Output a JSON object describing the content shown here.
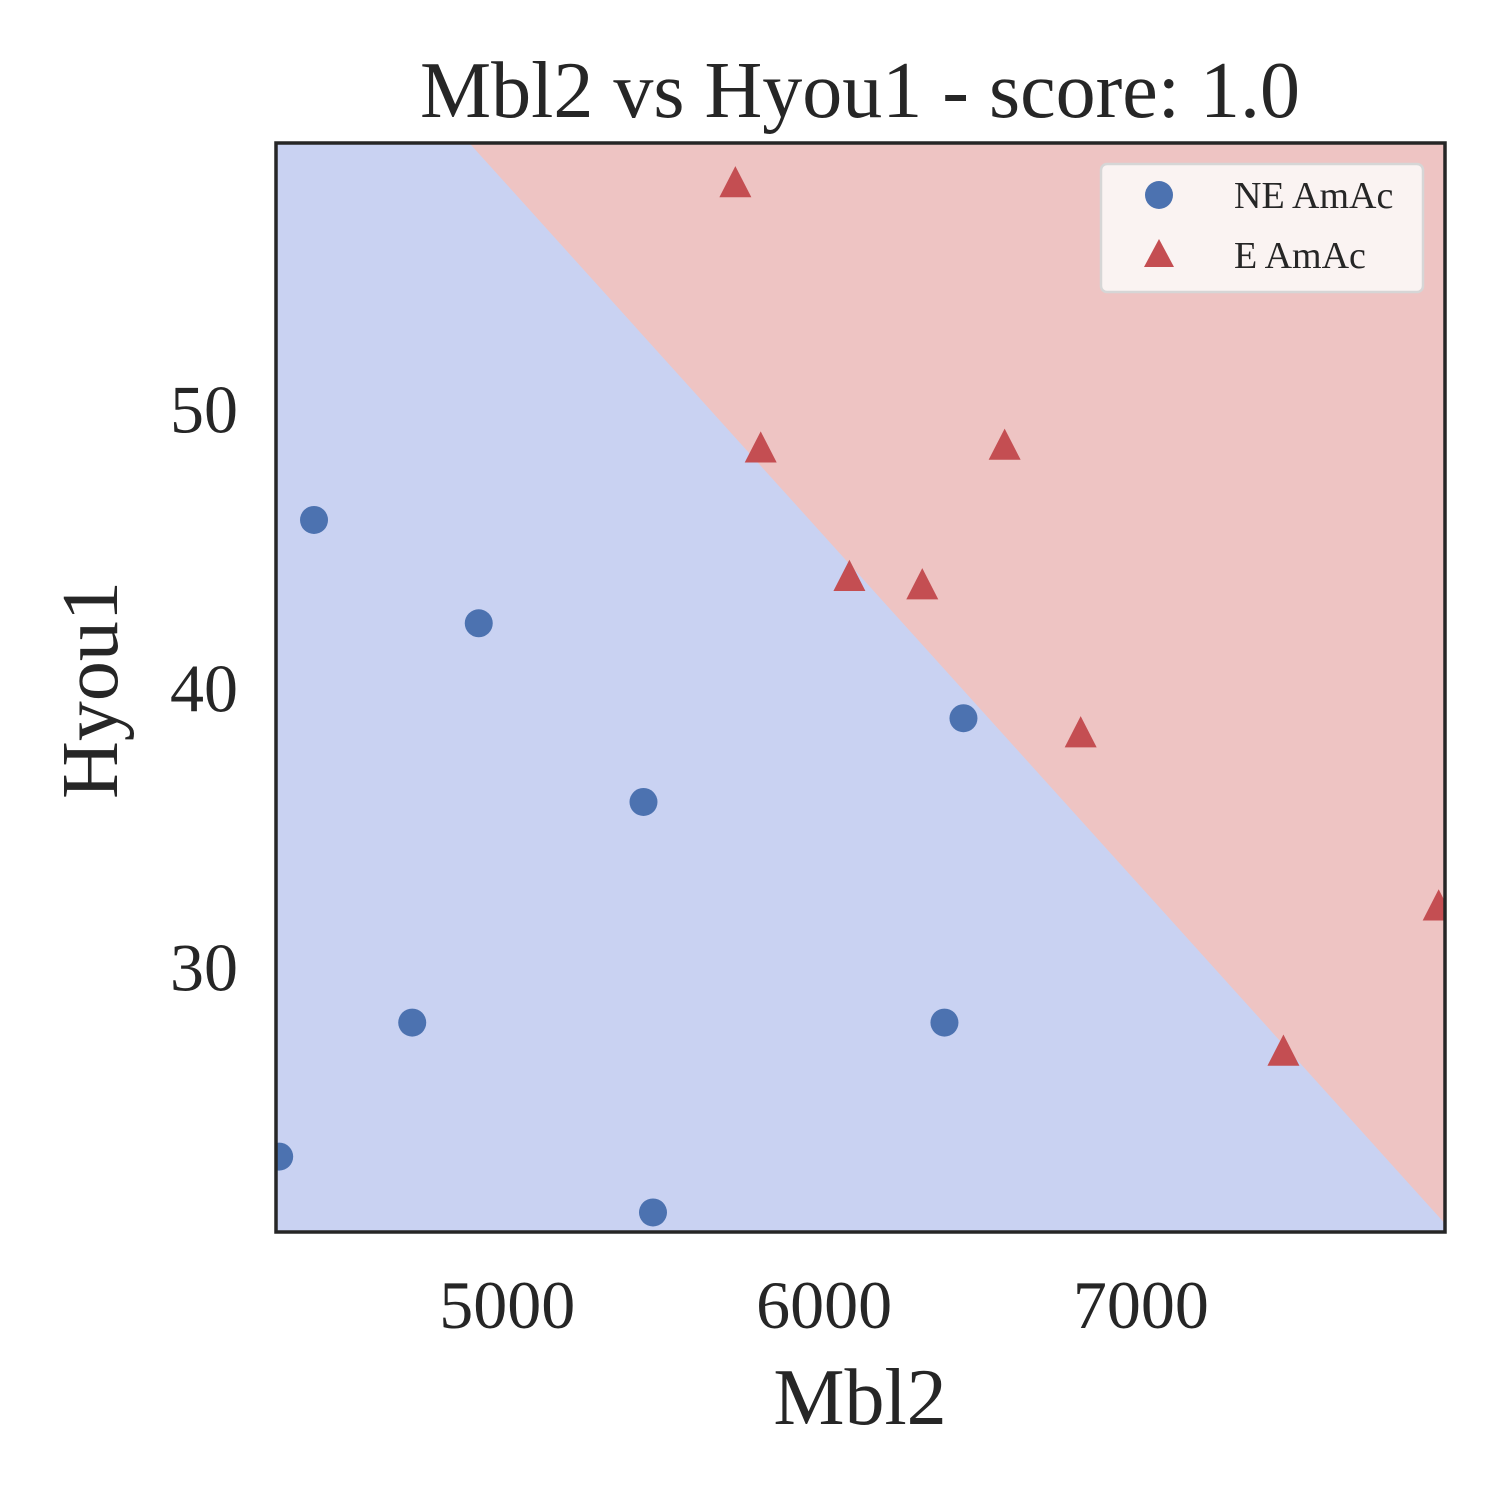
{
  "chart_data": {
    "type": "scatter",
    "title": "Mbl2 vs Hyou1 - score: 1.0",
    "xlabel": "Mbl2",
    "ylabel": "Hyou1",
    "xlim": [
      4270,
      7960
    ],
    "ylim": [
      20.5,
      59.5
    ],
    "xticks": [
      5000,
      6000,
      7000
    ],
    "yticks": [
      30,
      40,
      50
    ],
    "grid": false,
    "legend_position": "top-right",
    "decision_boundary": {
      "points": [
        [
          4880,
          59.5
        ],
        [
          7960,
          20.8
        ]
      ],
      "regions": [
        {
          "side": "lower-left",
          "class": "NE AmAc",
          "color": "#c9d2f2"
        },
        {
          "side": "upper-right",
          "class": "E AmAc",
          "color": "#eec4c3"
        }
      ]
    },
    "series": [
      {
        "name": "NE AmAc",
        "marker": "circle",
        "color": "#4c72b0",
        "points": [
          [
            4390,
            46.0
          ],
          [
            4910,
            42.3
          ],
          [
            5430,
            35.9
          ],
          [
            4700,
            28.0
          ],
          [
            4280,
            23.2
          ],
          [
            5460,
            21.2
          ],
          [
            6380,
            28.0
          ],
          [
            6440,
            38.9
          ]
        ]
      },
      {
        "name": "E AmAc",
        "marker": "triangle",
        "color": "#c44e52",
        "points": [
          [
            5720,
            58.1
          ],
          [
            5800,
            48.6
          ],
          [
            6570,
            48.7
          ],
          [
            6080,
            44.0
          ],
          [
            6310,
            43.7
          ],
          [
            6810,
            38.4
          ],
          [
            7450,
            27.0
          ],
          [
            7940,
            32.2
          ]
        ]
      }
    ]
  }
}
